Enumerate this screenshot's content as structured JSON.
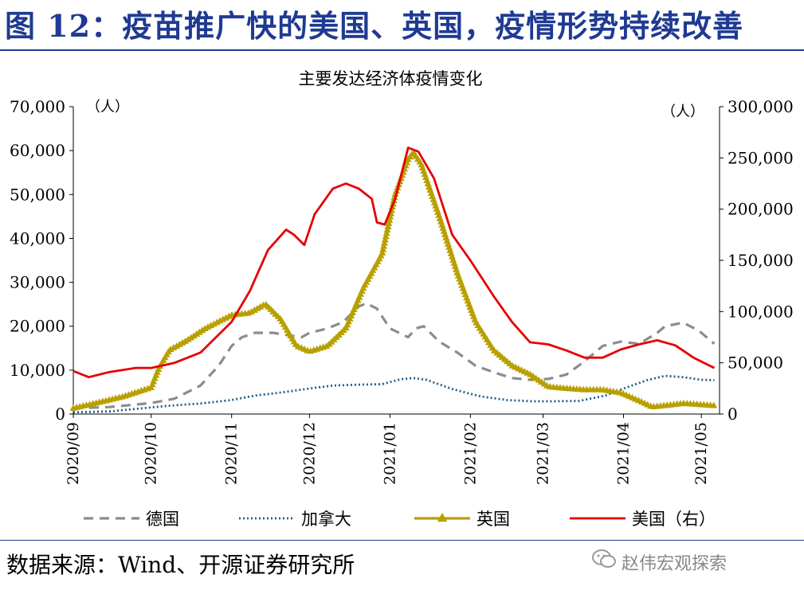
{
  "figure": {
    "title": "图 12：疫苗推广快的美国、英国，疫情形势持续改善",
    "source": "数据来源：Wind、开源证券研究所",
    "watermark": "赵伟宏观探索"
  },
  "chart_data": {
    "type": "line",
    "title": "主要发达经济体疫情变化",
    "y_left_unit": "（人）",
    "y_right_unit": "（人）",
    "ylim_left": [
      0,
      70000
    ],
    "ylim_right": [
      0,
      300000
    ],
    "y_left_ticks": [
      "0",
      "10,000",
      "20,000",
      "30,000",
      "40,000",
      "50,000",
      "60,000",
      "70,000"
    ],
    "y_right_ticks": [
      "0",
      "50,000",
      "100,000",
      "150,000",
      "200,000",
      "250,000",
      "300,000"
    ],
    "x_ticks": [
      "2020/09",
      "2020/10",
      "2020/11",
      "2020/12",
      "2021/01",
      "2021/02",
      "2021/03",
      "2021/04",
      "2021/05"
    ],
    "grid": false,
    "legend_position": "bottom",
    "series": [
      {
        "name": "德国",
        "axis": "left",
        "color": "#8c8c8c",
        "style": "dashed",
        "points": [
          [
            "2020-09-01",
            1300
          ],
          [
            "2020-09-15",
            1600
          ],
          [
            "2020-10-01",
            2500
          ],
          [
            "2020-10-10",
            3500
          ],
          [
            "2020-10-20",
            6500
          ],
          [
            "2020-10-27",
            11000
          ],
          [
            "2020-11-01",
            15500
          ],
          [
            "2020-11-05",
            17500
          ],
          [
            "2020-11-10",
            18500
          ],
          [
            "2020-11-17",
            18500
          ],
          [
            "2020-11-22",
            18000
          ],
          [
            "2020-11-28",
            17500
          ],
          [
            "2020-12-01",
            18500
          ],
          [
            "2020-12-08",
            19500
          ],
          [
            "2020-12-14",
            21000
          ],
          [
            "2020-12-20",
            24500
          ],
          [
            "2020-12-23",
            25200
          ],
          [
            "2020-12-27",
            24000
          ],
          [
            "2021-01-01",
            19500
          ],
          [
            "2021-01-08",
            17500
          ],
          [
            "2021-01-11",
            19500
          ],
          [
            "2021-01-14",
            20000
          ],
          [
            "2021-01-20",
            16500
          ],
          [
            "2021-01-27",
            14000
          ],
          [
            "2021-02-03",
            11000
          ],
          [
            "2021-02-10",
            9500
          ],
          [
            "2021-02-17",
            8200
          ],
          [
            "2021-02-24",
            7800
          ],
          [
            "2021-03-03",
            8000
          ],
          [
            "2021-03-10",
            9000
          ],
          [
            "2021-03-17",
            12000
          ],
          [
            "2021-03-24",
            15500
          ],
          [
            "2021-03-31",
            16500
          ],
          [
            "2021-04-07",
            16000
          ],
          [
            "2021-04-14",
            18500
          ],
          [
            "2021-04-17",
            20000
          ],
          [
            "2021-04-24",
            20800
          ],
          [
            "2021-04-30",
            19000
          ],
          [
            "2021-05-06",
            16000
          ]
        ]
      },
      {
        "name": "加拿大",
        "axis": "left",
        "color": "#1f5f8b",
        "style": "dotted",
        "points": [
          [
            "2020-09-01",
            400
          ],
          [
            "2020-09-15",
            600
          ],
          [
            "2020-10-01",
            1500
          ],
          [
            "2020-10-10",
            2000
          ],
          [
            "2020-10-20",
            2400
          ],
          [
            "2020-11-01",
            3200
          ],
          [
            "2020-11-10",
            4200
          ],
          [
            "2020-11-20",
            4900
          ],
          [
            "2020-12-01",
            5800
          ],
          [
            "2020-12-10",
            6500
          ],
          [
            "2020-12-20",
            6700
          ],
          [
            "2020-12-29",
            6800
          ],
          [
            "2021-01-05",
            7900
          ],
          [
            "2021-01-10",
            8200
          ],
          [
            "2021-01-15",
            7800
          ],
          [
            "2021-01-25",
            5700
          ],
          [
            "2021-02-05",
            4000
          ],
          [
            "2021-02-15",
            3200
          ],
          [
            "2021-02-25",
            2900
          ],
          [
            "2021-03-05",
            2900
          ],
          [
            "2021-03-15",
            3000
          ],
          [
            "2021-03-25",
            4200
          ],
          [
            "2021-04-01",
            5800
          ],
          [
            "2021-04-10",
            7700
          ],
          [
            "2021-04-17",
            8700
          ],
          [
            "2021-04-24",
            8400
          ],
          [
            "2021-05-01",
            7800
          ],
          [
            "2021-05-06",
            7700
          ]
        ]
      },
      {
        "name": "英国",
        "axis": "left",
        "color": "#b8a000",
        "style": "solid-triangle",
        "points": [
          [
            "2020-09-01",
            1300
          ],
          [
            "2020-09-10",
            2500
          ],
          [
            "2020-09-20",
            3900
          ],
          [
            "2020-10-01",
            6000
          ],
          [
            "2020-10-04",
            10500
          ],
          [
            "2020-10-08",
            14500
          ],
          [
            "2020-10-15",
            16800
          ],
          [
            "2020-10-22",
            19500
          ],
          [
            "2020-11-01",
            22500
          ],
          [
            "2020-11-08",
            23000
          ],
          [
            "2020-11-14",
            25000
          ],
          [
            "2020-11-20",
            21500
          ],
          [
            "2020-11-26",
            15500
          ],
          [
            "2020-12-01",
            14200
          ],
          [
            "2020-12-08",
            15500
          ],
          [
            "2020-12-15",
            19500
          ],
          [
            "2020-12-22",
            29000
          ],
          [
            "2020-12-29",
            36500
          ],
          [
            "2021-01-03",
            50000
          ],
          [
            "2021-01-08",
            58000
          ],
          [
            "2021-01-10",
            59500
          ],
          [
            "2021-01-13",
            57000
          ],
          [
            "2021-01-20",
            45000
          ],
          [
            "2021-01-27",
            32000
          ],
          [
            "2021-02-03",
            21000
          ],
          [
            "2021-02-10",
            14500
          ],
          [
            "2021-02-17",
            11000
          ],
          [
            "2021-02-24",
            9000
          ],
          [
            "2021-03-03",
            6200
          ],
          [
            "2021-03-10",
            5800
          ],
          [
            "2021-03-17",
            5500
          ],
          [
            "2021-03-24",
            5500
          ],
          [
            "2021-03-31",
            4800
          ],
          [
            "2021-04-07",
            3000
          ],
          [
            "2021-04-12",
            1600
          ],
          [
            "2021-04-17",
            1900
          ],
          [
            "2021-04-24",
            2400
          ],
          [
            "2021-05-01",
            2100
          ],
          [
            "2021-05-06",
            1900
          ]
        ]
      },
      {
        "name": "美国（右）",
        "axis": "right",
        "color": "#e60000",
        "style": "solid",
        "points": [
          [
            "2020-09-01",
            42000
          ],
          [
            "2020-09-07",
            36000
          ],
          [
            "2020-09-15",
            41000
          ],
          [
            "2020-09-25",
            45000
          ],
          [
            "2020-10-01",
            45000
          ],
          [
            "2020-10-10",
            50000
          ],
          [
            "2020-10-20",
            60000
          ],
          [
            "2020-11-01",
            90000
          ],
          [
            "2020-11-08",
            120000
          ],
          [
            "2020-11-15",
            160000
          ],
          [
            "2020-11-22",
            180000
          ],
          [
            "2020-11-25",
            175000
          ],
          [
            "2020-11-29",
            165000
          ],
          [
            "2020-12-03",
            195000
          ],
          [
            "2020-12-10",
            220000
          ],
          [
            "2020-12-15",
            225000
          ],
          [
            "2020-12-20",
            220000
          ],
          [
            "2020-12-25",
            210000
          ],
          [
            "2020-12-27",
            187000
          ],
          [
            "2020-12-30",
            185000
          ],
          [
            "2021-01-03",
            210000
          ],
          [
            "2021-01-08",
            260000
          ],
          [
            "2021-01-12",
            256000
          ],
          [
            "2021-01-18",
            230000
          ],
          [
            "2021-01-25",
            175000
          ],
          [
            "2021-02-01",
            150000
          ],
          [
            "2021-02-10",
            115000
          ],
          [
            "2021-02-17",
            90000
          ],
          [
            "2021-02-24",
            70000
          ],
          [
            "2021-03-03",
            68000
          ],
          [
            "2021-03-10",
            62000
          ],
          [
            "2021-03-17",
            55000
          ],
          [
            "2021-03-24",
            55000
          ],
          [
            "2021-03-31",
            63000
          ],
          [
            "2021-04-07",
            68000
          ],
          [
            "2021-04-14",
            72000
          ],
          [
            "2021-04-21",
            67000
          ],
          [
            "2021-04-28",
            55000
          ],
          [
            "2021-05-06",
            45000
          ]
        ]
      }
    ]
  }
}
